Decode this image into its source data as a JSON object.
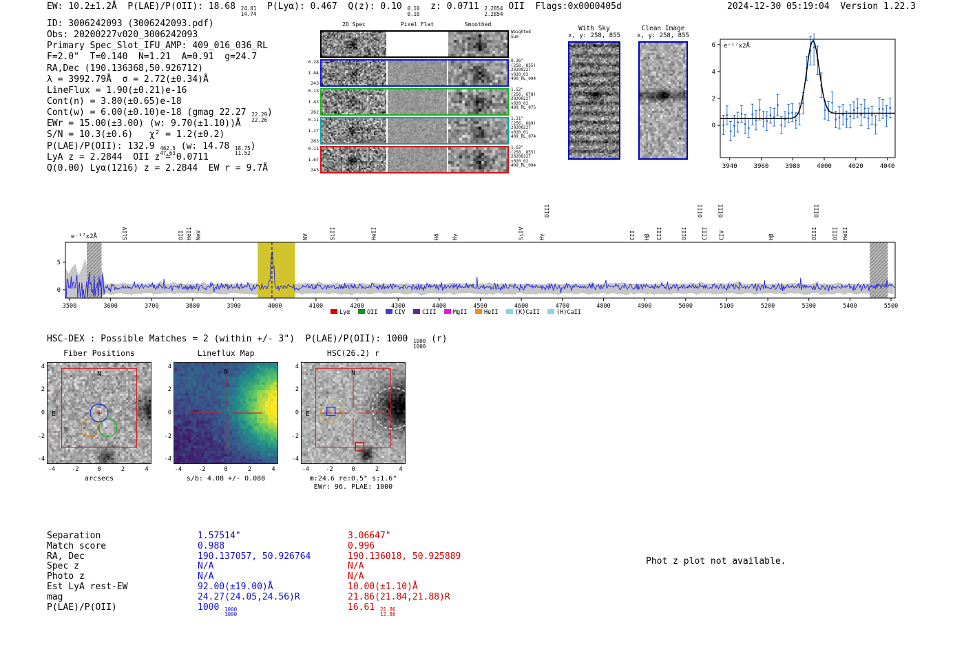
{
  "header": {
    "datetime": "2024-12-30 05:19:04  Version 1.22.3"
  },
  "rich": {
    "header_left": [
      {
        "t": "EW: 10.2±1.2Å  P(LAE)/P(OII): 18.68 "
      },
      {
        "f": [
          "24.81",
          "14.74"
        ]
      },
      {
        "t": "  P(Lyα): 0.467  Q(z): 0.10 "
      },
      {
        "f": [
          "0.10",
          "0.10"
        ]
      },
      {
        "t": "  z: 0.0711 "
      },
      {
        "f": [
          "2.2854",
          "2.2854"
        ]
      },
      {
        "t": " OII  Flags:0x0000405d"
      }
    ],
    "info_lines": [
      [
        {
          "t": "ID: 3006242093 (3006242093.pdf)"
        }
      ],
      [
        {
          "t": "Obs: 20200227v020_3006242093"
        }
      ],
      [
        {
          "t": "Primary Spec_Slot_IFU_AMP: 409_016_036_RL"
        }
      ],
      [
        {
          "t": "F=2.0\"  T=0.140  N=1.21  A=0.91  g=24.7"
        }
      ],
      [
        {
          "t": "RA,Dec (190.136368,50.926712)"
        }
      ],
      [
        {
          "t": "λ = 3992.79Å  σ = 2.72(±0.34)Å"
        }
      ],
      [
        {
          "t": "LineFlux = 1.90(±0.21)e-16"
        }
      ],
      [
        {
          "t": "Cont(n) = 3.80(±0.65)e-18"
        }
      ],
      [
        {
          "t": "Cont(w) = 6.00(±0.10)e-18 (gmag 22.27 "
        },
        {
          "f": [
            "22.29",
            "22.26"
          ]
        },
        {
          "t": ")"
        }
      ],
      [
        {
          "t": "EWr = 15.00(±3.00) (w: 9.70(±1.10))Å"
        }
      ],
      [
        {
          "t": "S/N = 10.3(±0.6)   χ² = 1.2(±0.2)"
        }
      ],
      [
        {
          "t": "P(LAE)/P(OII): 132.9 "
        },
        {
          "f": [
            "462.5",
            "47.63"
          ]
        },
        {
          "t": " (w: 14.78 "
        },
        {
          "f": [
            "18.75",
            "11.52"
          ]
        },
        {
          "t": ")"
        }
      ],
      [
        {
          "t": "LyA z = 2.2844  OII z = 0.0711"
        }
      ],
      [
        {
          "t": "Q(0.00) Lyα(1216) z = 2.2844  EW r = 9.7Å"
        }
      ]
    ],
    "hsc_dex": [
      {
        "t": "HSC-DEX : Possible Matches = 2 (within +/- 3\")  P(LAE)/P(OII): 1000 "
      },
      {
        "f": [
          "1000",
          "1000"
        ]
      },
      {
        "t": " (r)"
      }
    ]
  },
  "spec2d": {
    "col_headers": [
      "2D Spec",
      "Pixel Flat",
      "Smoothed"
    ],
    "rows": [
      {
        "left": [],
        "right": [
          "Weighted",
          "Sum"
        ],
        "border": "#000000"
      },
      {
        "left": [
          "0.28",
          "1.84",
          "243"
        ],
        "right": [
          "0.26\"",
          "(258, 855)",
          "20200227",
          "v020_03",
          "409_RL_094"
        ],
        "border": "#1111ee"
      },
      {
        "left": [
          "0.13",
          "1.43",
          "262"
        ],
        "right": [
          "1.52\"",
          "(256, 678)",
          "20200227",
          "v020_02",
          "409_RL_075"
        ],
        "border": "#11bb11"
      },
      {
        "left": [
          "0.11",
          "1.17",
          "263"
        ],
        "right": [
          "1.31\"",
          "(256, 669)",
          "20200227",
          "v020_01",
          "409_RL_074"
        ],
        "border": "#00a8a8"
      },
      {
        "left": [
          "0.11",
          "1.67",
          "243"
        ],
        "right": [
          "1.62\"",
          "(258, 855)",
          "20200227",
          "v020_02",
          "409_RL_094"
        ],
        "border": "#dd1111"
      }
    ]
  },
  "cutouts": {
    "with_sky": {
      "title": "With Sky",
      "subtitle": "x, y: 258, 855",
      "border": "#0000bb"
    },
    "clean": {
      "title": "Clean Image",
      "subtitle": "x, y: 258, 855",
      "border": "#0000bb"
    }
  },
  "panels": {
    "ticks": [
      -4,
      -2,
      0,
      2,
      4
    ],
    "fiber": {
      "title": "Fiber Positions",
      "xlabel": "arcsecs",
      "north": "N",
      "east": "E",
      "box_color": "#cc2222",
      "compass_color": "#cc2222",
      "fibers": {
        "radius_arcsec": 0.756,
        "gray": [
          [
            -1.5,
            2.6
          ],
          [
            0,
            2.6
          ],
          [
            1.5,
            2.6
          ],
          [
            -2.25,
            1.3
          ],
          [
            -0.75,
            1.3
          ],
          [
            0.75,
            1.3
          ],
          [
            2.25,
            1.3
          ],
          [
            -3,
            0
          ],
          [
            -1.5,
            0
          ],
          [
            1.5,
            0
          ],
          [
            3,
            0
          ],
          [
            -2.25,
            -1.3
          ],
          [
            2.25,
            -1.3
          ]
        ],
        "blue": [
          0,
          0
        ],
        "orange": [
          -0.75,
          -1.3
        ],
        "green": [
          0.75,
          -1.3
        ]
      }
    },
    "lineflux": {
      "title": "Lineflux Map",
      "sub": "s/b: 4.08 +/- 0.088",
      "north": "N",
      "crosshair_color": "#cc2222"
    },
    "hsc": {
      "title": "HSC(26.2) r",
      "sub1": "m:24.6 re:0.5\" s:1.6\"",
      "sub2": "EWr: 96. PLAE: 1000",
      "north": "N",
      "east": "E",
      "box_color": "#cc2222",
      "markers": {
        "blue_square": [
          -1.9,
          0.15
        ],
        "red_square": [
          0.55,
          -2.95
        ],
        "yellow_dashed_circle": {
          "c": [
            -1.85,
            0.1
          ],
          "r": 0.95
        },
        "white_dashed_circle": {
          "c": [
            3.4,
            0.4
          ],
          "r": 1.75
        }
      }
    }
  },
  "match_table": {
    "col1_color": "#0b0bd0",
    "col2_color": "#cc0000",
    "labels": [
      "Separation",
      "Match score",
      "RA, Dec",
      "Spec z",
      "Photo z",
      "Est LyA rest-EW",
      "mag",
      "P(LAE)/P(OII)"
    ],
    "col1": [
      [
        {
          "t": "1.57514\""
        }
      ],
      [
        {
          "t": "0.988"
        }
      ],
      [
        {
          "t": "190.137057, 50.926764"
        }
      ],
      [
        {
          "t": "N/A"
        }
      ],
      [
        {
          "t": "N/A"
        }
      ],
      [
        {
          "t": "92.00(±19.00)Å"
        }
      ],
      [
        {
          "t": "24.27(24.05,24.56)R"
        }
      ],
      [
        {
          "t": "1000 "
        },
        {
          "f": [
            "1000",
            "1000"
          ]
        }
      ]
    ],
    "col2": [
      [
        {
          "t": "3.06647\""
        }
      ],
      [
        {
          "t": "0.996"
        }
      ],
      [
        {
          "t": "190.136018, 50.925889"
        }
      ],
      [
        {
          "t": "N/A"
        }
      ],
      [
        {
          "t": "N/A"
        }
      ],
      [
        {
          "t": "10.00(±1.10)Å"
        }
      ],
      [
        {
          "t": "21.86(21.84,21.88)R"
        }
      ],
      [
        {
          "t": "16.61 "
        },
        {
          "f": [
            "21.86",
            "12.86"
          ]
        }
      ]
    ]
  },
  "photz_note": "Phot z plot not available.",
  "chart_data": [
    {
      "id": "line_fit_zoom",
      "type": "scatter",
      "title": "",
      "xlabel": "",
      "ylabel": "",
      "annotation": "e⁻¹⁷x2Å",
      "xlim": [
        3934,
        4045
      ],
      "ylim": [
        -2.4,
        6.4
      ],
      "xticks": [
        3940,
        3960,
        3980,
        4000,
        4020,
        4040
      ],
      "yticks": [
        0,
        2,
        4,
        6
      ],
      "point_color": "#2a6fc9",
      "fit_color": "#000000",
      "fit": {
        "center": 3992.79,
        "sigma": 2.72,
        "draw_sigma": 4.0,
        "amplitude": 5.6,
        "continuum": 0.5,
        "step": 0.4
      },
      "noise": 0.42,
      "step": 2.3,
      "seed": 11
    },
    {
      "id": "full_spectrum",
      "type": "line",
      "title": "",
      "annotation": "e⁻¹⁷x2Å",
      "xlim": [
        3490,
        5510
      ],
      "ylim": [
        -1.5,
        8.6
      ],
      "xticks": [
        3500,
        3600,
        3700,
        3800,
        3900,
        4000,
        4100,
        4200,
        4300,
        4400,
        4500,
        4600,
        4700,
        4800,
        4900,
        5000,
        5100,
        5200,
        5300,
        5400,
        5500
      ],
      "yticks": [
        0,
        5
      ],
      "line_color": "#2121dd",
      "noise": {
        "base": 0.55,
        "sigma": 0.3,
        "seed": 5,
        "left_edge_until": 3585,
        "left_sigma": 1.6
      },
      "peak": {
        "center": 3992.79,
        "sigma": 2.9,
        "amplitude": 6.3
      },
      "envelope": {
        "top": 1.0,
        "bottom": -0.6,
        "seed": 8,
        "color": "#c6c6c6"
      },
      "highlight": {
        "x0": 3958,
        "x1": 4049,
        "color": "#d2c42c",
        "line_x": 3992.79
      },
      "masked": [
        {
          "x0": 3542,
          "x1": 3578
        },
        {
          "x0": 5448,
          "x1": 5492
        }
      ],
      "legend": [
        {
          "label": "Lyα",
          "color": "#dd0000"
        },
        {
          "label": "OII",
          "color": "#1e8b1e"
        },
        {
          "label": "CIV",
          "color": "#4040d0"
        },
        {
          "label": "CIII",
          "color": "#5b2c91"
        },
        {
          "label": "MgII",
          "color": "#e318e3"
        },
        {
          "label": "HeII",
          "color": "#f28c1e"
        },
        {
          "label": "(K)CaII",
          "color": "#8fd0ea"
        },
        {
          "label": "(H)CaII",
          "color": "#8fd0ea"
        }
      ],
      "top_labels": [
        {
          "label": "SiIV",
          "wl": 3634,
          "color": "#8a2be2",
          "row": 1
        },
        {
          "label": "OII",
          "wl": 3771,
          "color": "#1e8b1e",
          "row": 1
        },
        {
          "label": "HeII",
          "wl": 3790,
          "color": "#f2981e",
          "row": 1
        },
        {
          "label": "NeV",
          "wl": 3813,
          "color": "#c9a227",
          "row": 1
        },
        {
          "label": "NV",
          "wl": 4073,
          "color": "#dd0000",
          "row": 1
        },
        {
          "label": "SiII",
          "wl": 4140,
          "color": "#dd0000",
          "row": 1
        },
        {
          "label": "HeII",
          "wl": 4240,
          "color": "#8a2be2",
          "row": 1
        },
        {
          "label": "Hδ",
          "wl": 4393,
          "color": "#7fc4e8",
          "row": 1
        },
        {
          "label": "Hγ",
          "wl": 4438,
          "color": "#7fc4e8",
          "row": 1
        },
        {
          "label": "SiIV",
          "wl": 4599,
          "color": "#8a2be2",
          "row": 1
        },
        {
          "label": "Hγ",
          "wl": 4649,
          "color": "#1e8b1e",
          "row": 1
        },
        {
          "label": "OIII",
          "wl": 4662,
          "color": "#f2981e",
          "row": 2
        },
        {
          "label": "CII",
          "wl": 4870,
          "color": "#dd0000",
          "row": 1
        },
        {
          "label": "Hβ",
          "wl": 4905,
          "color": "#7fc4e8",
          "row": 1
        },
        {
          "label": "CIII",
          "wl": 4935,
          "color": "#5b2c91",
          "row": 1
        },
        {
          "label": "OIII",
          "wl": 4995,
          "color": "#7fc4e8",
          "row": 1
        },
        {
          "label": "OIII",
          "wl": 5035,
          "color": "#7fc4e8",
          "row": 2
        },
        {
          "label": "CIII",
          "wl": 5046,
          "color": "#7fc4e8",
          "row": 1
        },
        {
          "label": "OIII",
          "wl": 5085,
          "color": "#7fc4e8",
          "row": 2
        },
        {
          "label": "CIV",
          "wl": 5087,
          "color": "#dd0000",
          "row": 1
        },
        {
          "label": "Hβ",
          "wl": 5207,
          "color": "#1e8b1e",
          "row": 1
        },
        {
          "label": "OIII",
          "wl": 5312,
          "color": "#1e8b1e",
          "row": 1
        },
        {
          "label": "OIII",
          "wl": 5318,
          "color": "#e318e3",
          "row": 2
        },
        {
          "label": "OIII",
          "wl": 5363,
          "color": "#1e8b1e",
          "row": 1
        },
        {
          "label": "HeII",
          "wl": 5388,
          "color": "#dd0000",
          "row": 1
        }
      ]
    }
  ]
}
